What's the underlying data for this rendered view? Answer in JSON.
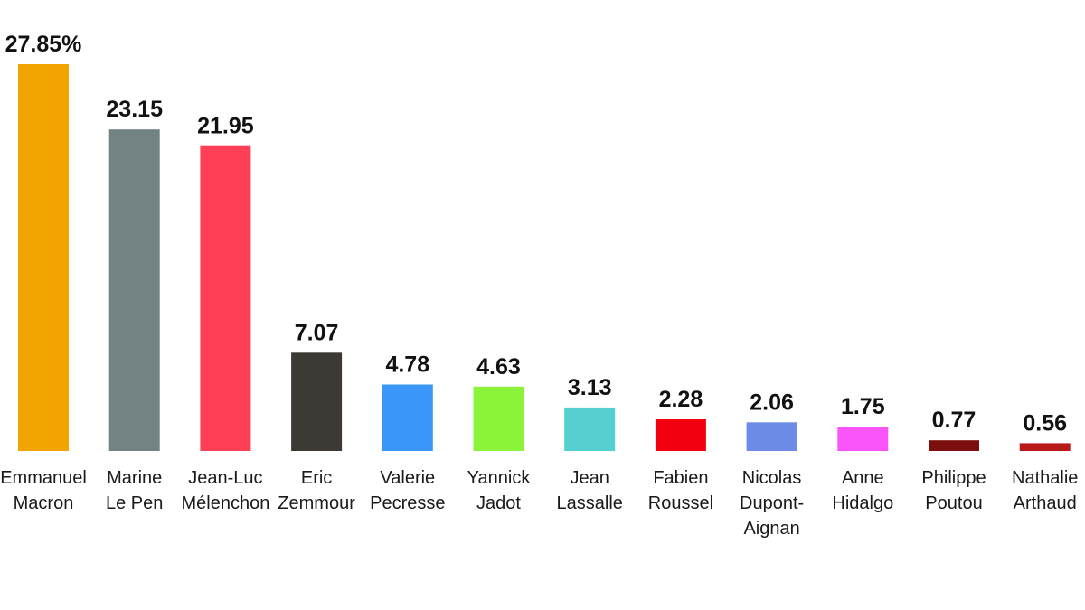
{
  "chart_data": {
    "type": "bar",
    "title": "",
    "xlabel": "",
    "ylabel": "",
    "ylim": [
      0,
      27.85
    ],
    "grid": false,
    "legend": "none",
    "categories": [
      [
        "Emmanuel",
        "Macron"
      ],
      [
        "Marine",
        "Le Pen"
      ],
      [
        "Jean-Luc",
        "Mélenchon"
      ],
      [
        "Eric",
        "Zemmour"
      ],
      [
        "Valerie",
        "Pecresse"
      ],
      [
        "Yannick",
        "Jadot"
      ],
      [
        "Jean",
        "Lassalle"
      ],
      [
        "Fabien",
        "Roussel"
      ],
      [
        "Nicolas",
        "Dupont-",
        "Aignan"
      ],
      [
        "Anne",
        "Hidalgo"
      ],
      [
        "Philippe",
        "Poutou"
      ],
      [
        "Nathalie",
        "Arthaud"
      ]
    ],
    "values": [
      27.85,
      23.15,
      21.95,
      7.07,
      4.78,
      4.63,
      3.13,
      2.28,
      2.06,
      1.75,
      0.77,
      0.56
    ],
    "value_labels": [
      "27.85%",
      "23.15",
      "21.95",
      "7.07",
      "4.78",
      "4.63",
      "3.13",
      "2.28",
      "2.06",
      "1.75",
      "0.77",
      "0.56"
    ],
    "colors": [
      "#f2a500",
      "#738282",
      "#ff3f55",
      "#3d3935",
      "#3a96f7",
      "#8bf43a",
      "#55cfcf",
      "#f20010",
      "#6d8ce8",
      "#fa55fa",
      "#7d0e0e",
      "#b81a1a"
    ]
  }
}
